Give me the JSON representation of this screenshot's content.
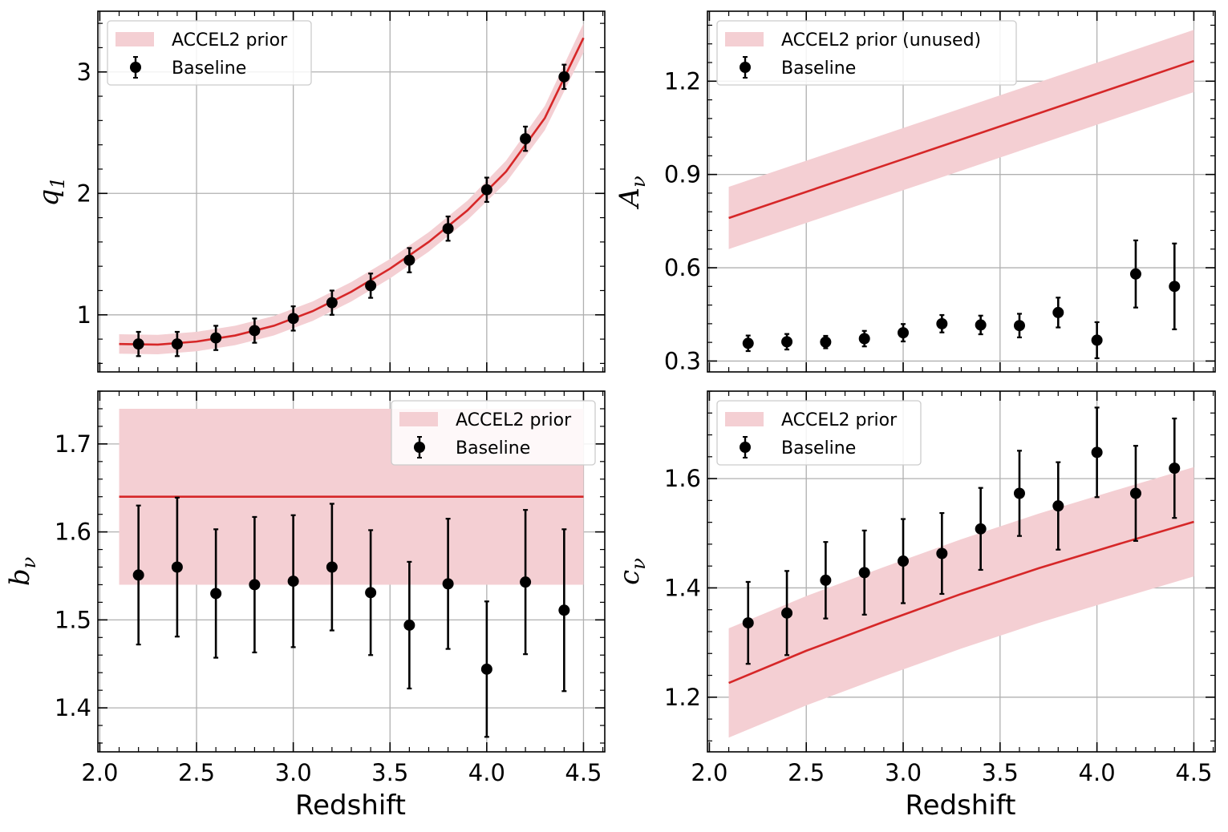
{
  "figure": {
    "xlabel": "Redshift",
    "x_tick_labels": [
      "2.0",
      "2.5",
      "3.0",
      "3.5",
      "4.0",
      "4.5"
    ]
  },
  "colors": {
    "prior_line": "#d62728",
    "prior_band": "#f4cfd3",
    "points": "#000000",
    "grid": "#b0b0b0"
  },
  "chart_data": [
    {
      "type": "line",
      "panel": "top-left",
      "ylabel": "q",
      "ylabel_sub": "1",
      "xlim": [
        1.99,
        4.61
      ],
      "ylim": [
        0.53,
        3.5
      ],
      "yticks": [
        1,
        2,
        3
      ],
      "ytick_labels": [
        "1",
        "2",
        "3"
      ],
      "xticks": [
        2.0,
        2.5,
        3.0,
        3.5,
        4.0,
        4.5
      ],
      "show_x_tick_labels": false,
      "show_xlabel": false,
      "grid": true,
      "legend_position": "top-left",
      "series": [
        {
          "name": "ACCEL2 prior",
          "kind": "band_with_line",
          "x": [
            2.1,
            2.3,
            2.5,
            2.7,
            2.9,
            3.1,
            3.3,
            3.5,
            3.7,
            3.9,
            4.1,
            4.3,
            4.5
          ],
          "y": [
            0.76,
            0.755,
            0.78,
            0.83,
            0.91,
            1.03,
            1.19,
            1.38,
            1.6,
            1.86,
            2.18,
            2.62,
            3.28
          ],
          "y_low": [
            0.68,
            0.675,
            0.7,
            0.75,
            0.83,
            0.95,
            1.11,
            1.3,
            1.52,
            1.78,
            2.09,
            2.52,
            3.16
          ],
          "y_high": [
            0.84,
            0.835,
            0.86,
            0.91,
            0.99,
            1.11,
            1.27,
            1.46,
            1.68,
            1.94,
            2.27,
            2.72,
            3.4
          ]
        },
        {
          "name": "Baseline",
          "kind": "errorbar",
          "x": [
            2.2,
            2.4,
            2.6,
            2.8,
            3.0,
            3.2,
            3.4,
            3.6,
            3.8,
            4.0,
            4.2,
            4.4
          ],
          "y": [
            0.76,
            0.76,
            0.81,
            0.87,
            0.97,
            1.1,
            1.24,
            1.45,
            1.71,
            2.03,
            2.45,
            2.96
          ],
          "yerr": [
            0.1,
            0.1,
            0.1,
            0.1,
            0.1,
            0.1,
            0.1,
            0.1,
            0.1,
            0.1,
            0.1,
            0.1
          ]
        }
      ]
    },
    {
      "type": "line",
      "panel": "top-right",
      "ylabel": "A",
      "ylabel_sub": "ν",
      "xlim": [
        1.99,
        4.61
      ],
      "ylim": [
        0.265,
        1.425
      ],
      "yticks": [
        0.3,
        0.6,
        0.9,
        1.2
      ],
      "ytick_labels": [
        "0.3",
        "0.6",
        "0.9",
        "1.2"
      ],
      "xticks": [
        2.0,
        2.5,
        3.0,
        3.5,
        4.0,
        4.5
      ],
      "show_x_tick_labels": false,
      "show_xlabel": false,
      "grid": true,
      "legend_position": "top-left",
      "series": [
        {
          "name": "ACCEL2 prior (unused)",
          "kind": "band_with_line",
          "x": [
            2.1,
            4.5
          ],
          "y": [
            0.76,
            1.265
          ],
          "y_low": [
            0.66,
            1.165
          ],
          "y_high": [
            0.86,
            1.365
          ]
        },
        {
          "name": "Baseline",
          "kind": "errorbar",
          "x": [
            2.2,
            2.4,
            2.6,
            2.8,
            3.0,
            3.2,
            3.4,
            3.6,
            3.8,
            4.0,
            4.2,
            4.4
          ],
          "y": [
            0.357,
            0.362,
            0.361,
            0.372,
            0.391,
            0.42,
            0.416,
            0.414,
            0.456,
            0.367,
            0.58,
            0.54
          ],
          "yerr": [
            0.025,
            0.025,
            0.02,
            0.025,
            0.028,
            0.028,
            0.03,
            0.038,
            0.048,
            0.058,
            0.108,
            0.138
          ]
        }
      ]
    },
    {
      "type": "line",
      "panel": "bottom-left",
      "ylabel": "b",
      "ylabel_sub": "ν",
      "xlim": [
        1.99,
        4.61
      ],
      "ylim": [
        1.35,
        1.76
      ],
      "yticks": [
        1.4,
        1.5,
        1.6,
        1.7
      ],
      "ytick_labels": [
        "1.4",
        "1.5",
        "1.6",
        "1.7"
      ],
      "xticks": [
        2.0,
        2.5,
        3.0,
        3.5,
        4.0,
        4.5
      ],
      "show_x_tick_labels": true,
      "show_xlabel": true,
      "grid": true,
      "legend_position": "top-right",
      "series": [
        {
          "name": "ACCEL2 prior",
          "kind": "band_with_line",
          "x": [
            2.1,
            4.5
          ],
          "y": [
            1.64,
            1.64
          ],
          "y_low": [
            1.54,
            1.54
          ],
          "y_high": [
            1.74,
            1.74
          ]
        },
        {
          "name": "Baseline",
          "kind": "errorbar",
          "x": [
            2.2,
            2.4,
            2.6,
            2.8,
            3.0,
            3.2,
            3.4,
            3.6,
            3.8,
            4.0,
            4.2,
            4.4
          ],
          "y": [
            1.551,
            1.56,
            1.53,
            1.54,
            1.544,
            1.56,
            1.531,
            1.494,
            1.541,
            1.444,
            1.543,
            1.511
          ],
          "yerr": [
            0.079,
            0.079,
            0.073,
            0.077,
            0.075,
            0.072,
            0.071,
            0.072,
            0.074,
            0.077,
            0.082,
            0.092
          ]
        }
      ]
    },
    {
      "type": "line",
      "panel": "bottom-right",
      "ylabel": "c",
      "ylabel_sub": "ν",
      "xlim": [
        1.99,
        4.61
      ],
      "ylim": [
        1.1,
        1.76
      ],
      "yticks": [
        1.2,
        1.4,
        1.6
      ],
      "ytick_labels": [
        "1.2",
        "1.4",
        "1.6"
      ],
      "xticks": [
        2.0,
        2.5,
        3.0,
        3.5,
        4.0,
        4.5
      ],
      "show_x_tick_labels": true,
      "show_xlabel": true,
      "grid": true,
      "legend_position": "top-left",
      "series": [
        {
          "name": "ACCEL2 prior",
          "kind": "band_with_line",
          "x": [
            2.1,
            2.5,
            2.9,
            3.3,
            3.7,
            4.1,
            4.5
          ],
          "y": [
            1.226,
            1.285,
            1.338,
            1.389,
            1.436,
            1.479,
            1.521
          ],
          "y_low": [
            1.126,
            1.185,
            1.238,
            1.289,
            1.336,
            1.379,
            1.421
          ],
          "y_high": [
            1.326,
            1.385,
            1.438,
            1.489,
            1.536,
            1.579,
            1.621
          ]
        },
        {
          "name": "Baseline",
          "kind": "errorbar",
          "x": [
            2.2,
            2.4,
            2.6,
            2.8,
            3.0,
            3.2,
            3.4,
            3.6,
            3.8,
            4.0,
            4.2,
            4.4
          ],
          "y": [
            1.336,
            1.354,
            1.414,
            1.428,
            1.449,
            1.463,
            1.508,
            1.573,
            1.55,
            1.648,
            1.573,
            1.619
          ],
          "yerr": [
            0.075,
            0.077,
            0.07,
            0.077,
            0.077,
            0.074,
            0.075,
            0.078,
            0.08,
            0.082,
            0.087,
            0.091
          ]
        }
      ]
    }
  ]
}
